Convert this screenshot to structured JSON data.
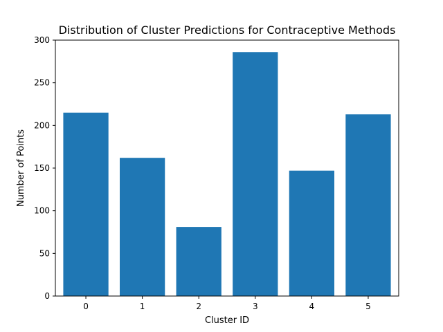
{
  "chart_data": {
    "type": "bar",
    "title": "Distribution of Cluster Predictions for Contraceptive Methods",
    "xlabel": "Cluster ID",
    "ylabel": "Number of Points",
    "categories": [
      "0",
      "1",
      "2",
      "3",
      "4",
      "5"
    ],
    "values": [
      215,
      162,
      81,
      286,
      147,
      213
    ],
    "ylim": [
      0,
      300
    ],
    "yticks": [
      0,
      50,
      100,
      150,
      200,
      250,
      300
    ],
    "grid": false,
    "bar_color": "#1f77b4"
  }
}
